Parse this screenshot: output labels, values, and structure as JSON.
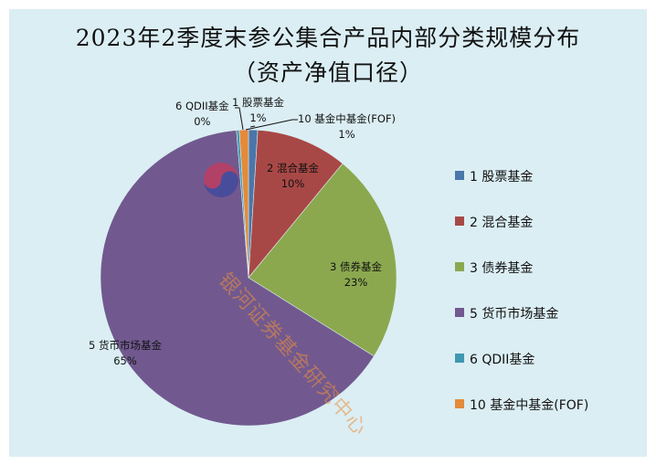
{
  "title": {
    "line1": "2023年2季度末参公集合产品内部分类规模分布",
    "line2": "（资产净值口径）"
  },
  "watermark": {
    "text": "银河证券基金研究中心",
    "logo": "taegeuk-logo-icon"
  },
  "chart_data": {
    "type": "pie",
    "title": "2023年2季度末参公集合产品内部分类规模分布（资产净值口径）",
    "categories": [
      "1 股票基金",
      "2 混合基金",
      "3 债券基金",
      "5 货币市场基金",
      "6 QDII基金",
      "10 基金中基金(FOF)"
    ],
    "values": [
      1,
      10,
      23,
      65,
      0,
      1
    ],
    "value_labels": [
      "1%",
      "10%",
      "23%",
      "65%",
      "0%",
      "1%"
    ],
    "colors": [
      "#4a76aa",
      "#a84846",
      "#8ba84f",
      "#71598f",
      "#3f98b0",
      "#e38a3b"
    ],
    "start_angle": "12 o'clock, clockwise",
    "legend_position": "right"
  },
  "data_labels": [
    {
      "name": "1 股票基金",
      "pct": "1%"
    },
    {
      "name": "2 混合基金",
      "pct": "10%"
    },
    {
      "name": "3 债券基金",
      "pct": "23%"
    },
    {
      "name": "5 货币市场基金",
      "pct": "65%"
    },
    {
      "name": "6 QDII基金",
      "pct": "0%"
    },
    {
      "name": "10 基金中基金(FOF)",
      "pct": "1%"
    }
  ],
  "legend": [
    {
      "label": "1 股票基金",
      "color": "#4a76aa"
    },
    {
      "label": "2 混合基金",
      "color": "#a84846"
    },
    {
      "label": "3 债券基金",
      "color": "#8ba84f"
    },
    {
      "label": "5 货币市场基金",
      "color": "#71598f"
    },
    {
      "label": "6 QDII基金",
      "color": "#3f98b0"
    },
    {
      "label": "10 基金中基金(FOF)",
      "color": "#e38a3b"
    }
  ]
}
